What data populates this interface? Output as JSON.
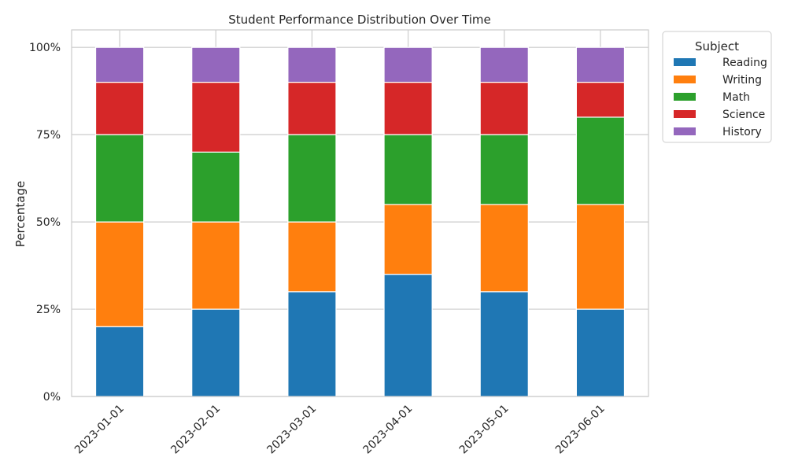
{
  "chart_data": {
    "type": "bar",
    "stacked": true,
    "title": "Student Performance Distribution Over Time",
    "xlabel": "",
    "ylabel": "Percentage",
    "categories": [
      "2023-01-01",
      "2023-02-01",
      "2023-03-01",
      "2023-04-01",
      "2023-05-01",
      "2023-06-01"
    ],
    "ylim": [
      0,
      1.05
    ],
    "yticks": [
      0,
      0.25,
      0.5,
      0.75,
      1.0
    ],
    "ytick_labels": [
      "0%",
      "25%",
      "50%",
      "75%",
      "100%"
    ],
    "grid": true,
    "legend": {
      "title": "Subject",
      "placement": "outside-top-right"
    },
    "series": [
      {
        "name": "Reading",
        "color": "#1f77b4",
        "values": [
          0.2,
          0.25,
          0.3,
          0.35,
          0.3,
          0.25
        ]
      },
      {
        "name": "Writing",
        "color": "#ff7f0e",
        "values": [
          0.3,
          0.25,
          0.2,
          0.2,
          0.25,
          0.3
        ]
      },
      {
        "name": "Math",
        "color": "#2ca02c",
        "values": [
          0.25,
          0.2,
          0.25,
          0.2,
          0.2,
          0.25
        ]
      },
      {
        "name": "Science",
        "color": "#d62728",
        "values": [
          0.15,
          0.2,
          0.15,
          0.15,
          0.15,
          0.1
        ]
      },
      {
        "name": "History",
        "color": "#9467bd",
        "values": [
          0.1,
          0.1,
          0.1,
          0.1,
          0.1,
          0.1
        ]
      }
    ]
  }
}
